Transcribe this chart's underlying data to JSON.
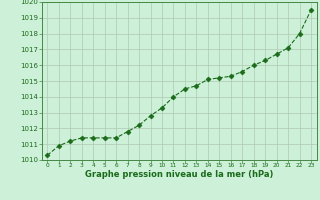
{
  "x_all": [
    0,
    1,
    2,
    3,
    4,
    5,
    6,
    7,
    8,
    9,
    10,
    11,
    12,
    13,
    14,
    15,
    16,
    17,
    18,
    19,
    20,
    21,
    22,
    23
  ],
  "y_all": [
    1010.3,
    1010.9,
    1011.2,
    1011.4,
    1011.4,
    1011.4,
    1011.4,
    1011.8,
    1012.2,
    1012.8,
    1013.3,
    1014.0,
    1014.5,
    1014.7,
    1015.1,
    1015.2,
    1015.3,
    1015.6,
    1016.0,
    1016.3,
    1016.7,
    1017.1,
    1018.0,
    1019.5
  ],
  "ylim": [
    1010,
    1020
  ],
  "xlim_min": -0.5,
  "xlim_max": 23.5,
  "yticks": [
    1010,
    1011,
    1012,
    1013,
    1014,
    1015,
    1016,
    1017,
    1018,
    1019,
    1020
  ],
  "xticks": [
    0,
    1,
    2,
    3,
    4,
    5,
    6,
    7,
    8,
    9,
    10,
    11,
    12,
    13,
    14,
    15,
    16,
    17,
    18,
    19,
    20,
    21,
    22,
    23
  ],
  "xlabel": "Graphe pression niveau de la mer (hPa)",
  "line_color": "#1a6b1a",
  "marker": "D",
  "marker_size": 2.5,
  "bg_color": "#cdf0d8",
  "grid_color": "#b0c8b0",
  "spine_color": "#448844"
}
